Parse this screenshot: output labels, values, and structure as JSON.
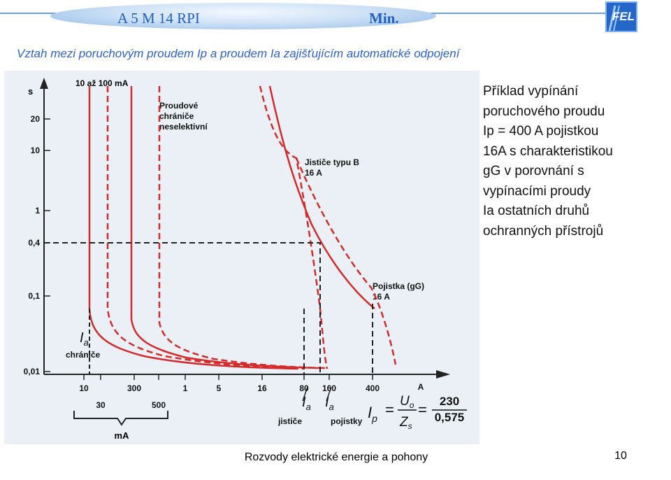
{
  "header": {
    "left_text": "A 5 M 14 RPI",
    "right_text": "Min.",
    "logo_text": "FEL"
  },
  "title": "Vztah mezi poruchovým proudem  Ip a proudem Ia  zajišťujícím automatické odpojení",
  "diagram": {
    "y_unit": "s",
    "y_ticks": [
      "20",
      "10",
      "1",
      "0,4",
      "0,1",
      "0,01"
    ],
    "x_unit": "A",
    "x_ticks_top": [
      "10",
      "300",
      "1",
      "5",
      "16",
      "80",
      "160",
      "400"
    ],
    "x_ticks_bottom": [
      "30",
      "500"
    ],
    "ma_label": "mA",
    "rcd_range_label": "10 až 100 mA",
    "rcd_label": [
      "Proudové",
      "chrániče",
      "neselektivní"
    ],
    "mcb_label": [
      "Jističe typu B",
      "16 A"
    ],
    "fuse_label": [
      "Pojistka (gG)",
      "16 A"
    ],
    "ia_chranice": {
      "symbol": "I",
      "sub": "a",
      "text": "chrániče"
    },
    "ia_jistice": {
      "symbol": "I",
      "sub": "a",
      "text": "jističe"
    },
    "ia_pojistky": {
      "symbol": "I",
      "sub": "a",
      "text": "pojistky"
    },
    "formula": {
      "lhs": "I",
      "lhs_sub": "p",
      "eq": "=",
      "num": "U",
      "num_sub": "o",
      "den": "Z",
      "den_sub": "s",
      "num_val": "230",
      "den_val": "0,575"
    }
  },
  "description_lines": [
    "Příklad vypínání",
    "poruchového proudu",
    "Ip = 400 A pojistkou",
    "16A s charakteristikou",
    "gG v porovnání s",
    "vypínacími proudy",
    "Ia ostatních druhů",
    "ochranných přístrojů"
  ],
  "footer": {
    "text": "Rozvody elektrické energie a pohony",
    "page": "10"
  },
  "colors": {
    "curve_red": "#d42a2a",
    "title_blue": "#2b62c4",
    "banner_text": "#1f5fc0"
  }
}
